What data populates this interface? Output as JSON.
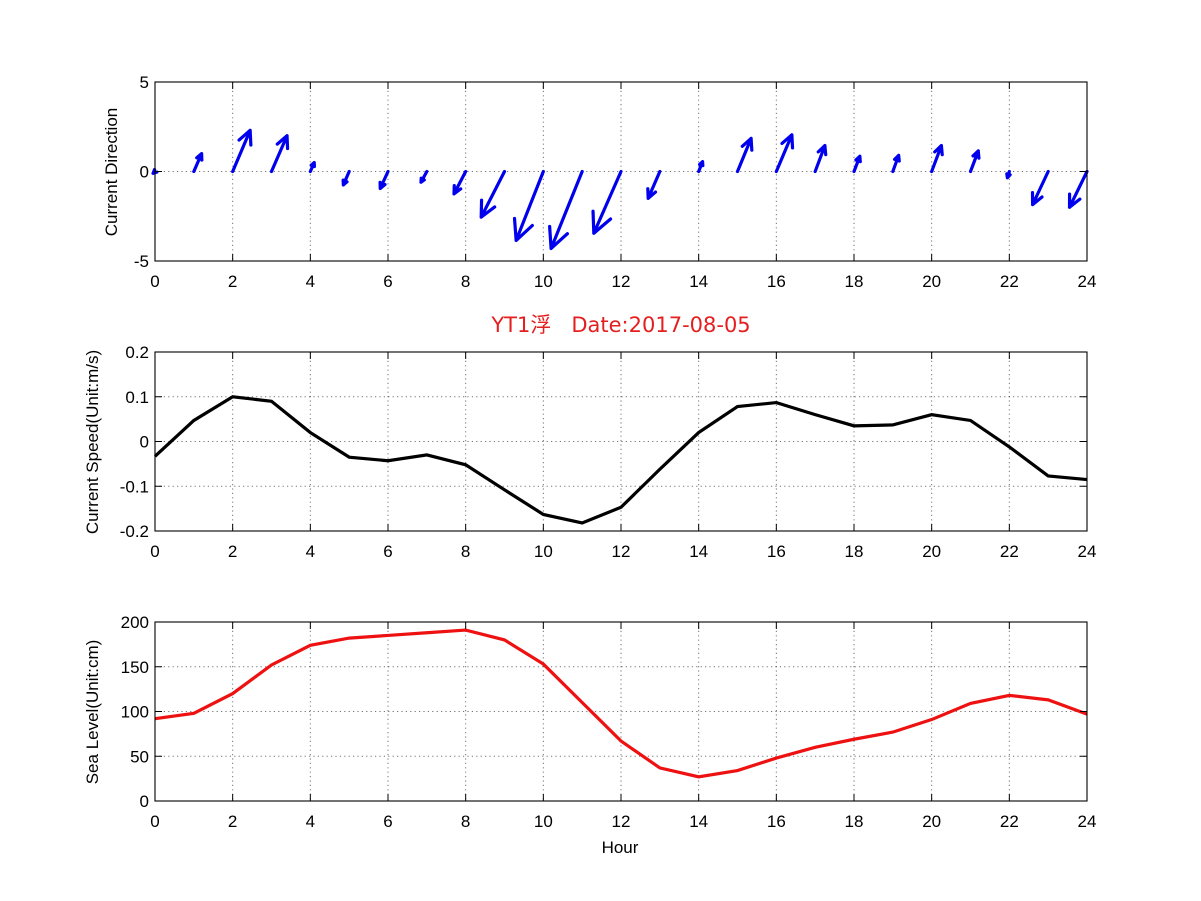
{
  "chart_data": [
    {
      "type": "quiver",
      "ylabel": "Current Direction",
      "xlim": [
        0,
        24
      ],
      "ylim": [
        -5,
        5
      ],
      "xticks": [
        0,
        2,
        4,
        6,
        8,
        10,
        12,
        14,
        16,
        18,
        20,
        22,
        24
      ],
      "yticks": [
        -5,
        0,
        5
      ],
      "grid": true,
      "arrow_color": "#0000ee",
      "arrows": [
        {
          "x": 0,
          "u": -0.05,
          "v": -0.1
        },
        {
          "x": 1,
          "u": 0.2,
          "v": 1.0
        },
        {
          "x": 2,
          "u": 0.45,
          "v": 2.3
        },
        {
          "x": 3,
          "u": 0.4,
          "v": 2.0
        },
        {
          "x": 4,
          "u": 0.1,
          "v": 0.5
        },
        {
          "x": 5,
          "u": -0.15,
          "v": -0.75
        },
        {
          "x": 6,
          "u": -0.2,
          "v": -0.95
        },
        {
          "x": 7,
          "u": -0.15,
          "v": -0.6
        },
        {
          "x": 8,
          "u": -0.3,
          "v": -1.25
        },
        {
          "x": 9,
          "u": -0.6,
          "v": -2.55
        },
        {
          "x": 10,
          "u": -0.7,
          "v": -3.85
        },
        {
          "x": 11,
          "u": -0.8,
          "v": -4.3
        },
        {
          "x": 12,
          "u": -0.7,
          "v": -3.45
        },
        {
          "x": 13,
          "u": -0.3,
          "v": -1.5
        },
        {
          "x": 14,
          "u": 0.1,
          "v": 0.55
        },
        {
          "x": 15,
          "u": 0.35,
          "v": 1.85
        },
        {
          "x": 16,
          "u": 0.4,
          "v": 2.05
        },
        {
          "x": 17,
          "u": 0.25,
          "v": 1.45
        },
        {
          "x": 18,
          "u": 0.15,
          "v": 0.85
        },
        {
          "x": 19,
          "u": 0.15,
          "v": 0.9
        },
        {
          "x": 20,
          "u": 0.25,
          "v": 1.45
        },
        {
          "x": 21,
          "u": 0.2,
          "v": 1.15
        },
        {
          "x": 22,
          "u": -0.05,
          "v": -0.35
        },
        {
          "x": 23,
          "u": -0.4,
          "v": -1.85
        },
        {
          "x": 24,
          "u": -0.45,
          "v": -2.0
        }
      ]
    },
    {
      "type": "line",
      "title": "YT1浮   Date:2017-08-05",
      "ylabel": "Current Speed(Unit:m/s)",
      "xlim": [
        0,
        24
      ],
      "ylim": [
        -0.2,
        0.2
      ],
      "xticks": [
        0,
        2,
        4,
        6,
        8,
        10,
        12,
        14,
        16,
        18,
        20,
        22,
        24
      ],
      "yticks": [
        -0.2,
        -0.1,
        0,
        0.1,
        0.2
      ],
      "grid": true,
      "series": [
        {
          "color": "#000000",
          "x": [
            0,
            1,
            2,
            3,
            4,
            5,
            6,
            7,
            8,
            9,
            10,
            11,
            12,
            13,
            14,
            15,
            16,
            17,
            18,
            19,
            20,
            21,
            22,
            23,
            24
          ],
          "values": [
            -0.033,
            0.047,
            0.1,
            0.09,
            0.02,
            -0.035,
            -0.043,
            -0.03,
            -0.052,
            -0.108,
            -0.163,
            -0.182,
            -0.147,
            -0.062,
            0.02,
            0.078,
            0.087,
            0.06,
            0.035,
            0.037,
            0.06,
            0.047,
            -0.012,
            -0.077,
            -0.085
          ]
        }
      ]
    },
    {
      "type": "line",
      "xlabel": "Hour",
      "ylabel": "Sea Level(Unit:cm)",
      "xlim": [
        0,
        24
      ],
      "ylim": [
        0,
        200
      ],
      "xticks": [
        0,
        2,
        4,
        6,
        8,
        10,
        12,
        14,
        16,
        18,
        20,
        22,
        24
      ],
      "yticks": [
        0,
        50,
        100,
        150,
        200
      ],
      "grid": true,
      "series": [
        {
          "color": "#ee1111",
          "x": [
            0,
            1,
            2,
            3,
            4,
            5,
            6,
            7,
            8,
            9,
            10,
            11,
            12,
            13,
            14,
            15,
            16,
            17,
            18,
            19,
            20,
            21,
            22,
            23,
            24
          ],
          "values": [
            92,
            98,
            120,
            152,
            174,
            182,
            185,
            188,
            191,
            180,
            153,
            110,
            67,
            37,
            27,
            34,
            48,
            60,
            69,
            77,
            91,
            109,
            118,
            113,
            97
          ]
        }
      ]
    }
  ]
}
